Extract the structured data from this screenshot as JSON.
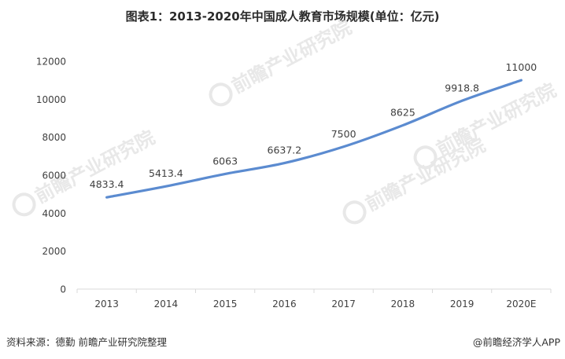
{
  "page": {
    "title": "图表1：2013-2020年中国成人教育市场规模(单位：亿元)",
    "source": "资料来源：德勤 前瞻产业研究院整理",
    "brand": "@前瞻经济学人APP"
  },
  "chart_data": {
    "type": "line",
    "title": "图表1：2013-2020年中国成人教育市场规模(单位：亿元)",
    "xlabel": "",
    "ylabel": "",
    "categories": [
      "2013",
      "2014",
      "2015",
      "2016",
      "2017",
      "2018",
      "2019",
      "2020E"
    ],
    "series": [
      {
        "values": [
          4833.4,
          5413.4,
          6063,
          6637.2,
          7500,
          8625,
          9918.8,
          11000
        ],
        "labels": [
          "4833.4",
          "5413.4",
          "6063",
          "6637.2",
          "7500",
          "8625",
          "9918.8",
          "11000"
        ]
      }
    ],
    "ylim": [
      0,
      12000
    ],
    "yticks": [
      0,
      2000,
      4000,
      6000,
      8000,
      10000,
      12000
    ],
    "grid": false,
    "legend": "none",
    "line_color": "#5b8bd0",
    "axis_color": "#d9d9d9",
    "label_color": "#404040"
  },
  "watermark": {
    "text": "前瞻产业研究院",
    "color": "#e8e8e8"
  }
}
